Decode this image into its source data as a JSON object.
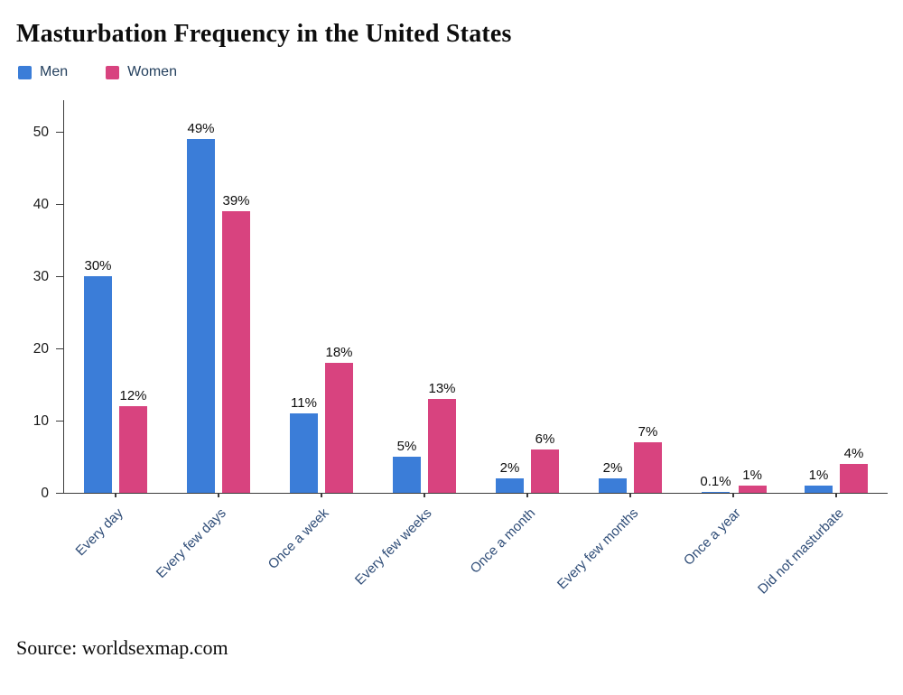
{
  "title": "Masturbation Frequency in the United States",
  "source_note": "Source: worldsexmap.com",
  "colors": {
    "men": "#3b7dd8",
    "women": "#d8437f",
    "axis": "#3c3c3c",
    "x_label": "#2e4c77",
    "text": "#0d0d0d"
  },
  "legend": {
    "items": [
      {
        "label": "Men",
        "color": "#3b7dd8"
      },
      {
        "label": "Women",
        "color": "#d8437f"
      }
    ]
  },
  "chart_data": {
    "type": "bar",
    "title": "Masturbation Frequency in the United States",
    "categories": [
      "Every day",
      "Every few days",
      "Once a week",
      "Every few weeks",
      "Once a month",
      "Every few months",
      "Once a year",
      "Did not masturbate"
    ],
    "series": [
      {
        "name": "Men",
        "color": "#3b7dd8",
        "values": [
          30,
          49,
          11,
          5,
          2,
          2,
          0.1,
          1
        ],
        "data_labels": [
          "30%",
          "49%",
          "11%",
          "5%",
          "2%",
          "2%",
          "0.1%",
          "1%"
        ]
      },
      {
        "name": "Women",
        "color": "#d8437f",
        "values": [
          12,
          39,
          18,
          13,
          6,
          7,
          1,
          4
        ],
        "data_labels": [
          "12%",
          "39%",
          "18%",
          "13%",
          "6%",
          "7%",
          "1%",
          "4%"
        ]
      }
    ],
    "yticks": [
      0,
      10,
      20,
      30,
      40,
      50
    ],
    "ylim": [
      0,
      54.5
    ],
    "grid": false,
    "legend_position": "top-left",
    "xlabel": "",
    "ylabel": ""
  }
}
